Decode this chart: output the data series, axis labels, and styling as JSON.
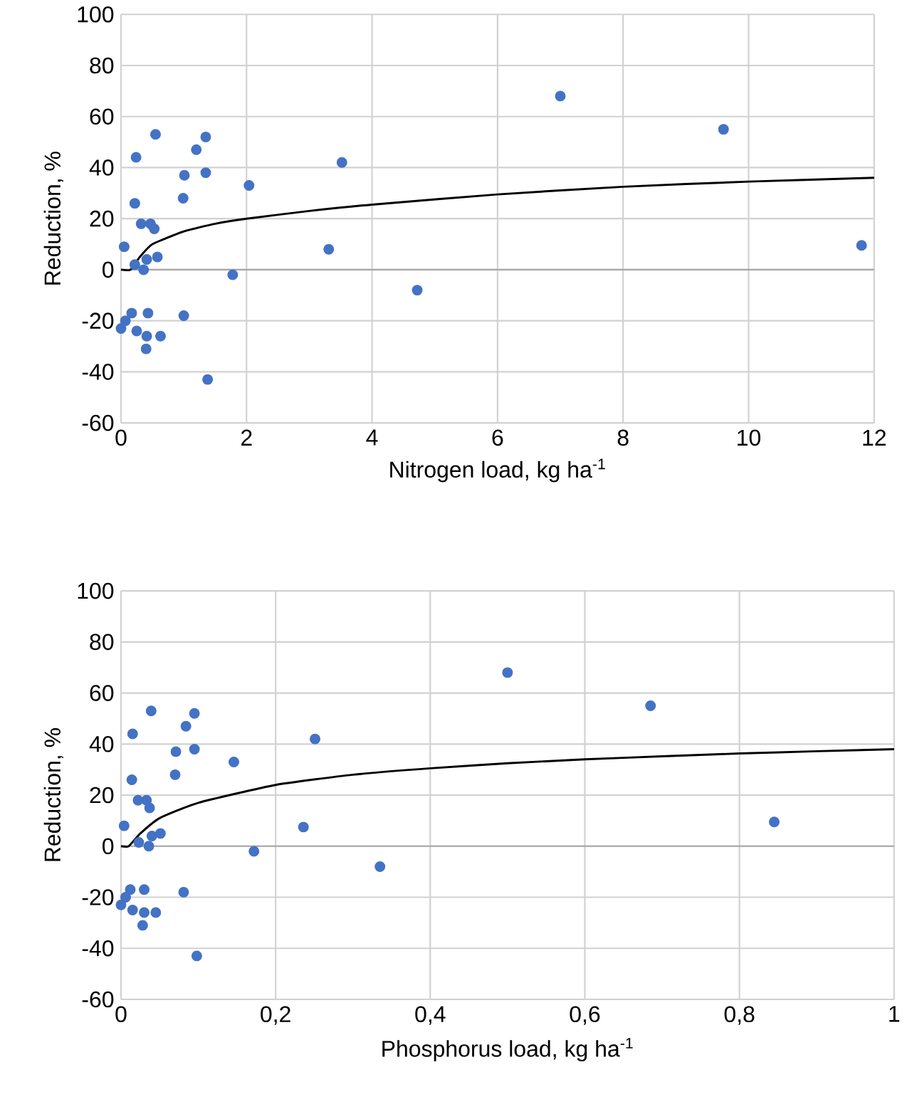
{
  "chart_data": [
    {
      "type": "scatter",
      "xlabel": "Nitrogen load, kg ha$^{-1}$",
      "ylabel": "Reduction, %",
      "xlim": [
        0,
        12
      ],
      "ylim": [
        -60,
        100
      ],
      "xticks": [
        0,
        2,
        4,
        6,
        8,
        10,
        12
      ],
      "yticks": [
        -60,
        -40,
        -20,
        0,
        20,
        40,
        60,
        80,
        100
      ],
      "grid": true,
      "series": [
        {
          "color": "#4472c4",
          "x": [
            0.55,
            1.35,
            0.24,
            1.2,
            1.01,
            1.35,
            2.04,
            3.52,
            0.99,
            0.22,
            0.32,
            0.47,
            0.53,
            0.05,
            3.31,
            0.22,
            0.36,
            0.41,
            0.58,
            1.78,
            4.72,
            0,
            0.07,
            0.17,
            0.43,
            1.0,
            0.25,
            0.41,
            0.4,
            0.63,
            1.38,
            7.0,
            9.6,
            11.8
          ],
          "values": [
            53,
            52,
            44,
            47,
            37,
            38,
            33,
            42,
            28,
            26,
            18,
            18,
            16,
            9,
            8,
            2,
            0,
            4,
            5,
            -2,
            -8,
            -23,
            -20,
            -17,
            -17,
            -18,
            -24,
            -26,
            -31,
            -26,
            -43,
            68,
            55,
            9.5
          ]
        },
        {
          "type": "line",
          "color": "#000000",
          "x": [
            0,
            0.15,
            0.3,
            0.5,
            1,
            1.5,
            2,
            3,
            4,
            6,
            8,
            10,
            12
          ],
          "values": [
            0,
            0,
            5,
            10,
            15,
            18,
            20,
            23,
            25.5,
            29.5,
            32.5,
            34.5,
            36
          ]
        }
      ]
    },
    {
      "type": "scatter",
      "xlabel": "Phosphorus load, kg ha$^{-1}$",
      "ylabel": "Reduction, %",
      "xlim": [
        0,
        1
      ],
      "ylim": [
        -60,
        100
      ],
      "xticks": [
        0,
        {
          "value": 0.2,
          "label": "0,2"
        },
        {
          "value": 0.4,
          "label": "0,4"
        },
        {
          "value": 0.6,
          "label": "0,6"
        },
        {
          "value": 0.8,
          "label": "0,8"
        },
        1
      ],
      "yticks": [
        -60,
        -40,
        -20,
        0,
        20,
        40,
        60,
        80,
        100
      ],
      "grid": true,
      "series": [
        {
          "color": "#4472c4",
          "x": [
            0.039,
            0.095,
            0.015,
            0.084,
            0.071,
            0.095,
            0.146,
            0.251,
            0.07,
            0.014,
            0.022,
            0.033,
            0.037,
            0.004,
            0.236,
            0.023,
            0.036,
            0.04,
            0.051,
            0.172,
            0.335,
            0,
            0.006,
            0.012,
            0.03,
            0.081,
            0.015,
            0.03,
            0.028,
            0.045,
            0.098,
            0.5,
            0.685,
            0.845
          ],
          "values": [
            53,
            52,
            44,
            47,
            37,
            38,
            33,
            42,
            28,
            26,
            18,
            18,
            15,
            8,
            7.5,
            1.5,
            0,
            4,
            5,
            -2,
            -8,
            -23,
            -20,
            -17,
            -17,
            -18,
            -25,
            -26,
            -31,
            -26,
            -43,
            68,
            55,
            9.5
          ]
        },
        {
          "type": "line",
          "color": "#000000",
          "x": [
            0,
            0.01,
            0.025,
            0.05,
            0.1,
            0.2,
            0.3,
            0.4,
            0.5,
            0.6,
            0.7,
            0.8,
            0.9,
            1
          ],
          "values": [
            0,
            0,
            5,
            11,
            17,
            24,
            28,
            30.5,
            32.5,
            34,
            35.2,
            36.3,
            37.2,
            38
          ]
        }
      ]
    }
  ]
}
